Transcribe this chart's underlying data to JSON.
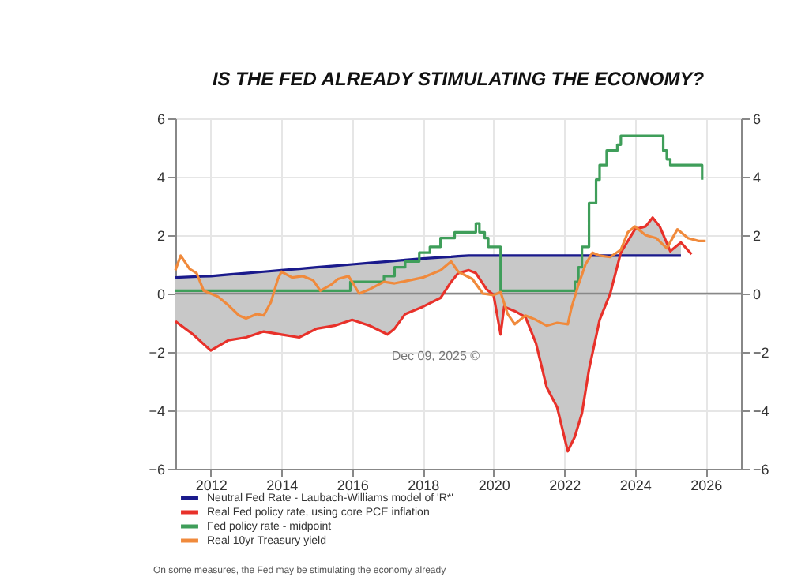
{
  "chart_data": {
    "type": "line",
    "title": "IS THE FED ALREADY STIMULATING THE ECONOMY?",
    "xlim": [
      2011,
      2027
    ],
    "xticks": [
      2012,
      2014,
      2016,
      2018,
      2020,
      2022,
      2024,
      2026
    ],
    "ylim": [
      -6,
      6
    ],
    "yticks": [
      -6,
      -4,
      -2,
      0,
      2,
      4,
      6
    ],
    "y2lim": [
      -6,
      6
    ],
    "y2ticks": [
      -6,
      -4,
      -2,
      0,
      2,
      4,
      6
    ],
    "grid": true,
    "legend": "bottom",
    "ref_lines": [
      {
        "axis": "y",
        "value": 0,
        "color": "#888888"
      }
    ],
    "annotations": [
      "Dec 09, 2025 ©",
      "On some measures, the Fed may be stimulating the economy already"
    ],
    "series": [
      {
        "name": "Neutral Fed Rate - Laubach-Williams model of 'R*'",
        "color": "#1a1a8c",
        "x": [
          2011,
          2011.5,
          2012,
          2012.5,
          2013,
          2013.5,
          2014,
          2014.5,
          2015,
          2015.5,
          2016,
          2016.5,
          2017,
          2017.2,
          2017.5,
          2018,
          2018.5,
          2018.8,
          2019,
          2019.3,
          2019.5,
          2019.8,
          2020,
          2020.2,
          2020.3,
          2020.6,
          2020.9,
          2021.2,
          2021.5,
          2021.8,
          2022,
          2022.1,
          2022.3,
          2022.5,
          2022.7,
          2023,
          2023.3,
          2023.6,
          2024,
          2024.3,
          2024.5,
          2024.7,
          2025,
          2025.3
        ],
        "values": [
          0.55,
          0.58,
          0.6,
          0.65,
          0.7,
          0.75,
          0.8,
          0.85,
          0.9,
          0.95,
          1.0,
          1.05,
          1.1,
          1.12,
          1.15,
          1.2,
          1.24,
          1.26,
          1.28,
          1.3,
          1.3,
          1.3,
          1.3,
          1.3,
          1.3,
          1.3,
          1.3,
          1.3,
          1.3,
          1.3,
          1.3,
          1.3,
          1.3,
          1.3,
          1.3,
          1.3,
          1.3,
          1.3,
          1.3,
          1.3,
          1.3,
          1.3,
          1.3,
          1.3
        ],
        "lower": [
          -0.95,
          -1.4,
          -1.95,
          -1.6,
          -1.5,
          -1.3,
          -1.4,
          -1.5,
          -1.2,
          -1.1,
          -0.9,
          -1.1,
          -1.4,
          -1.2,
          -0.7,
          -0.45,
          -0.15,
          0.4,
          0.7,
          0.8,
          0.7,
          0.15,
          -0.05,
          -1.4,
          -0.45,
          -0.6,
          -0.8,
          -1.7,
          -3.2,
          -3.9,
          -4.9,
          -5.4,
          -4.9,
          -4.1,
          -2.6,
          -0.9,
          0,
          1.4,
          2.2,
          2.3,
          2.6,
          2.3,
          1.45,
          1.75
        ],
        "upper": [
          0.55,
          0.58,
          0.6,
          0.65,
          0.7,
          0.75,
          0.8,
          0.85,
          0.9,
          0.95,
          1.0,
          1.05,
          1.1,
          1.12,
          1.15,
          1.2,
          1.24,
          1.26,
          1.28,
          1.3,
          1.3,
          1.3,
          1.3,
          1.3,
          1.3,
          1.3,
          1.3,
          1.3,
          1.3,
          1.3,
          1.3,
          1.3,
          1.3,
          1.3,
          1.3,
          1.3,
          1.3,
          1.3,
          1.3,
          1.3,
          1.3,
          1.3,
          1.3,
          1.3
        ]
      },
      {
        "name": "Real Fed policy rate, using core PCE inflation",
        "color": "#e8312a",
        "x": [
          2011,
          2011.5,
          2012,
          2012.5,
          2013,
          2013.5,
          2014,
          2014.5,
          2015,
          2015.5,
          2016,
          2016.5,
          2017,
          2017.2,
          2017.5,
          2018,
          2018.5,
          2018.8,
          2019,
          2019.3,
          2019.5,
          2019.8,
          2020,
          2020.2,
          2020.3,
          2020.6,
          2020.9,
          2021.2,
          2021.5,
          2021.8,
          2022,
          2022.1,
          2022.3,
          2022.5,
          2022.7,
          2023,
          2023.3,
          2023.6,
          2024,
          2024.3,
          2024.5,
          2024.7,
          2025,
          2025.3,
          2025.6
        ],
        "values": [
          -0.95,
          -1.4,
          -1.95,
          -1.6,
          -1.5,
          -1.3,
          -1.4,
          -1.5,
          -1.2,
          -1.1,
          -0.9,
          -1.1,
          -1.4,
          -1.2,
          -0.7,
          -0.45,
          -0.15,
          0.4,
          0.7,
          0.8,
          0.7,
          0.15,
          -0.05,
          -1.4,
          -0.45,
          -0.6,
          -0.8,
          -1.7,
          -3.2,
          -3.9,
          -4.9,
          -5.4,
          -4.9,
          -4.1,
          -2.6,
          -0.9,
          0,
          1.4,
          2.2,
          2.3,
          2.6,
          2.3,
          1.45,
          1.75,
          1.35
        ]
      },
      {
        "name": "Fed policy rate - midpoint",
        "color": "#3f9e5a",
        "type": "step",
        "x": [
          2011,
          2015.95,
          2016.9,
          2017.2,
          2017.5,
          2017.9,
          2018.2,
          2018.5,
          2018.9,
          2019.5,
          2019.6,
          2019.75,
          2019.85,
          2020.2,
          2022.2,
          2022.3,
          2022.4,
          2022.5,
          2022.7,
          2022.9,
          2023.0,
          2023.2,
          2023.5,
          2023.6,
          2024.7,
          2024.8,
          2024.9,
          2025.0,
          2025.7,
          2025.9
        ],
        "values": [
          0.1,
          0.4,
          0.6,
          0.9,
          1.1,
          1.4,
          1.6,
          1.9,
          2.1,
          2.4,
          2.1,
          1.9,
          1.6,
          0.1,
          0.1,
          0.4,
          0.9,
          1.6,
          3.1,
          3.9,
          4.4,
          4.9,
          5.1,
          5.4,
          5.4,
          4.9,
          4.6,
          4.4,
          4.4,
          3.9
        ]
      },
      {
        "name": "Real 10yr Treasury yield",
        "color": "#f08a3c",
        "x": [
          2011,
          2011.15,
          2011.4,
          2011.6,
          2011.8,
          2012.2,
          2012.5,
          2012.8,
          2013.0,
          2013.3,
          2013.5,
          2013.7,
          2013.9,
          2014.0,
          2014.3,
          2014.6,
          2014.9,
          2015.1,
          2015.4,
          2015.6,
          2015.9,
          2016.2,
          2016.5,
          2016.9,
          2017.2,
          2017.6,
          2018.0,
          2018.5,
          2018.8,
          2019.0,
          2019.4,
          2019.7,
          2020.0,
          2020.2,
          2020.4,
          2020.6,
          2020.9,
          2021.2,
          2021.5,
          2021.8,
          2022.1,
          2022.2,
          2022.4,
          2022.6,
          2022.8,
          2023.0,
          2023.3,
          2023.6,
          2023.8,
          2024.0,
          2024.3,
          2024.6,
          2024.9,
          2025.2,
          2025.5,
          2025.8,
          2026.0
        ],
        "values": [
          0.8,
          1.3,
          0.85,
          0.7,
          0.1,
          -0.1,
          -0.4,
          -0.75,
          -0.85,
          -0.7,
          -0.75,
          -0.3,
          0.5,
          0.75,
          0.55,
          0.6,
          0.45,
          0.1,
          0.3,
          0.5,
          0.6,
          0.0,
          0.15,
          0.4,
          0.35,
          0.45,
          0.55,
          0.8,
          1.1,
          0.75,
          0.5,
          0.0,
          -0.05,
          0.05,
          -0.7,
          -1.05,
          -0.75,
          -0.9,
          -1.1,
          -1.0,
          -1.05,
          -0.5,
          0.3,
          1.0,
          1.4,
          1.3,
          1.25,
          1.5,
          2.1,
          2.3,
          2.0,
          1.9,
          1.55,
          2.2,
          1.9,
          1.8,
          1.8
        ]
      }
    ]
  }
}
